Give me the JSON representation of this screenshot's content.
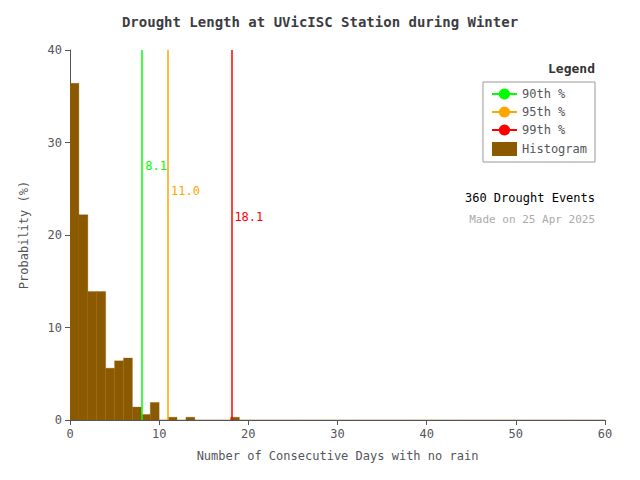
{
  "chart_data": {
    "type": "histogram",
    "title": "Drought Length at UVicISC Station during Winter",
    "xlabel": "Number of Consecutive Days with no rain",
    "ylabel": "Probability (%)",
    "name": "Histogram",
    "color": "#8B5A00",
    "bins": [
      0,
      1,
      2,
      3,
      4,
      5,
      6,
      7,
      8,
      9,
      10,
      11,
      12,
      13,
      14,
      15,
      16,
      17,
      18,
      19,
      20,
      21,
      22,
      23,
      24,
      25,
      26,
      27,
      28,
      29,
      30,
      31,
      32,
      33,
      34,
      35,
      36,
      37,
      38,
      39,
      40,
      41,
      42,
      43,
      44,
      45,
      46,
      47,
      48,
      49,
      50,
      51,
      52,
      53,
      54,
      55,
      56,
      57,
      58,
      59,
      60
    ],
    "values": [
      36.4,
      22.2,
      13.9,
      13.9,
      5.6,
      6.4,
      6.7,
      1.4,
      0.6,
      1.9,
      0.0,
      0.3,
      0.0,
      0.3,
      0.0,
      0.0,
      0.0,
      0.0,
      0.3,
      0.0,
      0.0,
      0.0,
      0.0,
      0.0,
      0.0,
      0.0,
      0.0,
      0.0,
      0.0,
      0.0,
      0.0,
      0.0,
      0.0,
      0.0,
      0.0,
      0.0,
      0.0,
      0.0,
      0.0,
      0.0,
      0.0,
      0.0,
      0.0,
      0.0,
      0.0,
      0.0,
      0.0,
      0.0,
      0.0,
      0.0,
      0.0,
      0.0,
      0.0,
      0.0,
      0.0,
      0.0,
      0.0,
      0.0,
      0.0,
      0.0
    ],
    "lines": [
      {
        "name": "90th %",
        "x": 8.1,
        "label": "8.1",
        "label_y": 27.5,
        "color": "#00FF00"
      },
      {
        "name": "95th %",
        "x": 11.0,
        "label": "11.0",
        "label_y": 24.8,
        "color": "#FFA500"
      },
      {
        "name": "99th %",
        "x": 18.1,
        "label": "18.1",
        "label_y": 22.0,
        "color": "#FF0000"
      }
    ],
    "xlim": [
      0,
      60
    ],
    "ylim": [
      0,
      40
    ],
    "xticks": [
      0,
      10,
      20,
      30,
      40,
      50,
      60
    ],
    "yticks": [
      0,
      10,
      20,
      30,
      40
    ],
    "grid": false,
    "legend": "upper right",
    "legend_title": "Legend",
    "annotations": [
      {
        "text": "360 Drought Events",
        "color": "#000000"
      },
      {
        "text": "Made on 25 Apr 2025",
        "color": "#AAAAAA"
      }
    ]
  }
}
